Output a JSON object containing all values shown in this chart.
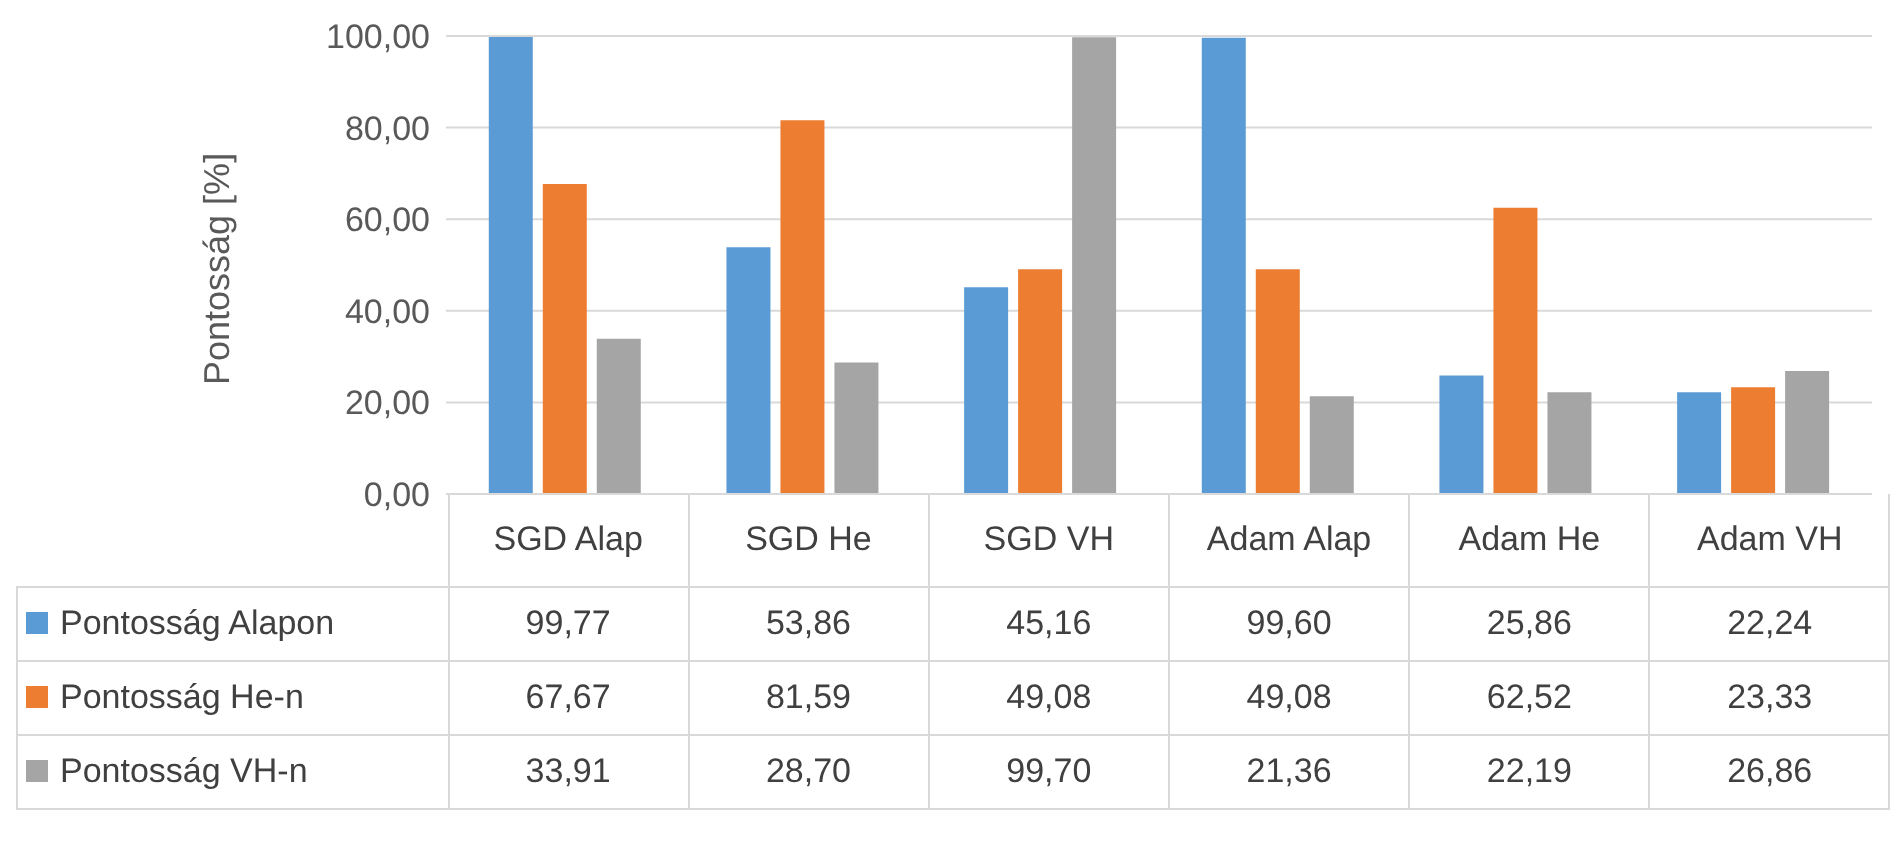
{
  "chart_data": {
    "type": "bar",
    "ylabel": "Pontosság [%]",
    "categories": [
      "SGD Alap",
      "SGD He",
      "SGD VH",
      "Adam Alap",
      "Adam He",
      "Adam VH"
    ],
    "series": [
      {
        "name": "Pontosság Alapon",
        "color": "#5b9bd5",
        "values": [
          99.77,
          53.86,
          45.16,
          99.6,
          25.86,
          22.24
        ],
        "value_labels": [
          "99,77",
          "53,86",
          "45,16",
          "99,60",
          "25,86",
          "22,24"
        ]
      },
      {
        "name": "Pontosság He-n",
        "color": "#ed7d31",
        "values": [
          67.67,
          81.59,
          49.08,
          49.08,
          62.52,
          23.33
        ],
        "value_labels": [
          "67,67",
          "81,59",
          "49,08",
          "49,08",
          "62,52",
          "23,33"
        ]
      },
      {
        "name": "Pontosság VH-n",
        "color": "#a5a5a5",
        "values": [
          33.91,
          28.7,
          99.7,
          21.36,
          22.19,
          26.86
        ],
        "value_labels": [
          "33,91",
          "28,70",
          "99,70",
          "21,36",
          "22,19",
          "26,86"
        ]
      }
    ],
    "ylim": [
      0,
      100
    ],
    "yticks": [
      {
        "value": 0,
        "label": "0,00"
      },
      {
        "value": 20,
        "label": "20,00"
      },
      {
        "value": 40,
        "label": "40,00"
      },
      {
        "value": 60,
        "label": "60,00"
      },
      {
        "value": 80,
        "label": "80,00"
      },
      {
        "value": 100,
        "label": "100,00"
      }
    ],
    "grid": "y",
    "legend": "bottom"
  }
}
